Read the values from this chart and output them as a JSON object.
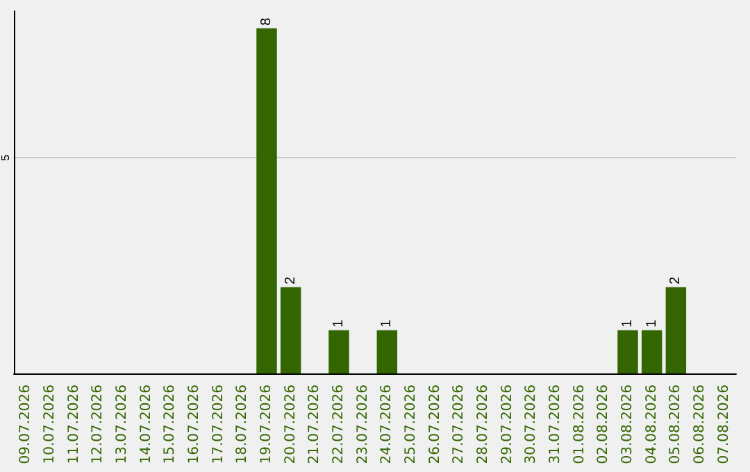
{
  "chart_data": {
    "type": "bar",
    "categories": [
      "09.07.2026",
      "10.07.2026",
      "11.07.2026",
      "12.07.2026",
      "13.07.2026",
      "14.07.2026",
      "15.07.2026",
      "16.07.2026",
      "17.07.2026",
      "18.07.2026",
      "19.07.2026",
      "20.07.2026",
      "21.07.2026",
      "22.07.2026",
      "23.07.2026",
      "24.07.2026",
      "25.07.2026",
      "26.07.2026",
      "27.07.2026",
      "28.07.2026",
      "29.07.2026",
      "30.07.2026",
      "31.07.2026",
      "01.08.2026",
      "02.08.2026",
      "03.08.2026",
      "04.08.2026",
      "05.08.2026",
      "06.08.2026",
      "07.08.2026"
    ],
    "values": [
      0,
      0,
      0,
      0,
      0,
      0,
      0,
      0,
      0,
      0,
      8,
      2,
      0,
      1,
      0,
      1,
      0,
      0,
      0,
      0,
      0,
      0,
      0,
      0,
      0,
      1,
      1,
      2,
      0,
      0
    ],
    "value_labels": [
      null,
      null,
      null,
      null,
      null,
      null,
      null,
      null,
      null,
      null,
      "8",
      "2",
      null,
      "1",
      null,
      "1",
      null,
      null,
      null,
      null,
      null,
      null,
      null,
      null,
      null,
      "1",
      "1",
      "2",
      null,
      null
    ],
    "color": "#336600",
    "ylim": [
      0,
      8.4
    ],
    "yticks": [
      5
    ],
    "grid": "y"
  }
}
